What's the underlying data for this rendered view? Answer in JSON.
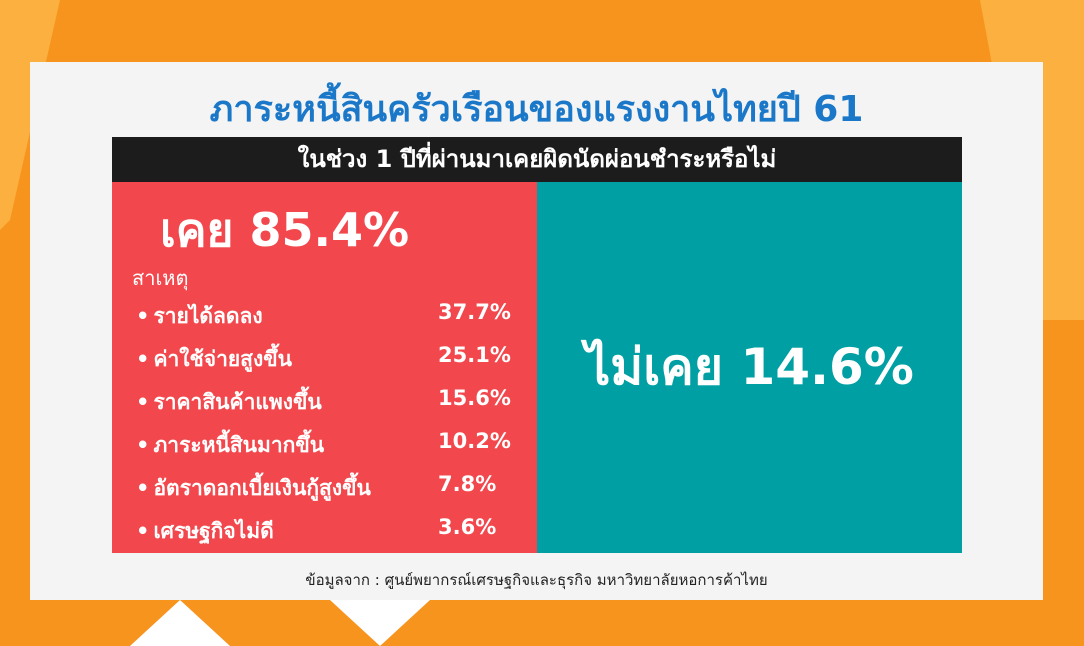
{
  "header": {
    "title": "ภาระหนี้สินครัวเรือนของแรงงานไทยปี 61",
    "subtitle": "ในช่วง 1 ปีที่ผ่านมาเคยผิดนัดผ่อนชำระหรือไม่"
  },
  "yes": {
    "label": "เคย 85.4%",
    "reasons_heading": "สาเหตุ",
    "reasons": [
      {
        "label": "รายได้ลดลง",
        "value": "37.7%"
      },
      {
        "label": "ค่าใช้จ่ายสูงขึ้น",
        "value": "25.1%"
      },
      {
        "label": "ราคาสินค้าแพงขึ้น",
        "value": "15.6%"
      },
      {
        "label": "ภาระหนี้สินมากขึ้น",
        "value": "10.2%"
      },
      {
        "label": "อัตราดอกเบี้ยเงินกู้สูงขึ้น",
        "value": "7.8%"
      },
      {
        "label": "เศรษฐกิจไม่ดี",
        "value": "3.6%"
      }
    ]
  },
  "no": {
    "label": "ไม่เคย 14.6%"
  },
  "source": "ข้อมูลจาก : ศูนย์พยากรณ์เศรษฐกิจและธุรกิจ มหาวิทยาลัยหอการค้าไทย"
}
